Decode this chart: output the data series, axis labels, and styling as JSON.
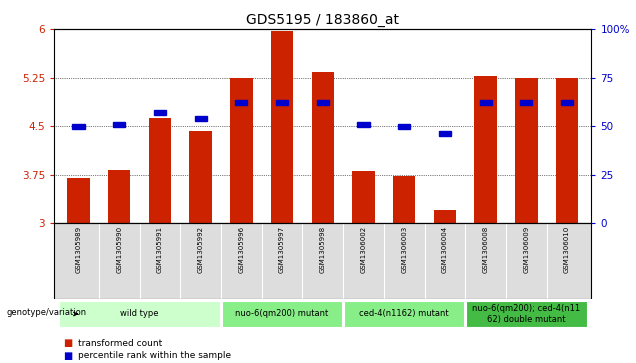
{
  "title": "GDS5195 / 183860_at",
  "samples": [
    "GSM1305989",
    "GSM1305990",
    "GSM1305991",
    "GSM1305992",
    "GSM1305996",
    "GSM1305997",
    "GSM1305998",
    "GSM1306002",
    "GSM1306003",
    "GSM1306004",
    "GSM1306008",
    "GSM1306009",
    "GSM1306010"
  ],
  "bar_values": [
    3.7,
    3.83,
    4.63,
    4.42,
    5.25,
    5.97,
    5.33,
    3.8,
    3.73,
    3.2,
    5.28,
    5.24,
    5.25
  ],
  "bar_base": 3.0,
  "percentile_values": [
    50,
    51,
    57,
    54,
    62,
    62,
    62,
    51,
    50,
    46,
    62,
    62,
    62
  ],
  "ylim_left": [
    3.0,
    6.0
  ],
  "ylim_right": [
    0,
    100
  ],
  "yticks_left": [
    3.0,
    3.75,
    4.5,
    5.25,
    6.0
  ],
  "yticks_right": [
    0,
    25,
    50,
    75,
    100
  ],
  "ytick_labels_left": [
    "3",
    "3.75",
    "4.5",
    "5.25",
    "6"
  ],
  "ytick_labels_right": [
    "0",
    "25",
    "50",
    "75",
    "100%"
  ],
  "bar_color": "#CC2200",
  "percentile_color": "#0000CC",
  "bg_color": "#FFFFFF",
  "genotype_groups": [
    {
      "label": "wild type",
      "start": 0,
      "end": 3,
      "color": "#CCFFCC"
    },
    {
      "label": "nuo-6(qm200) mutant",
      "start": 4,
      "end": 6,
      "color": "#88EE88"
    },
    {
      "label": "ced-4(n1162) mutant",
      "start": 7,
      "end": 9,
      "color": "#88EE88"
    },
    {
      "label": "nuo-6(qm200); ced-4(n11\n62) double mutant",
      "start": 10,
      "end": 12,
      "color": "#44BB44"
    }
  ],
  "xlabel_genotype": "genotype/variation",
  "legend_bar_label": "transformed count",
  "legend_pct_label": "percentile rank within the sample",
  "title_fontsize": 10,
  "bar_width": 0.55,
  "sample_label_fontsize": 5.0,
  "geno_fontsize": 6.0,
  "legend_fontsize": 6.5,
  "ytick_fontsize": 7.5
}
